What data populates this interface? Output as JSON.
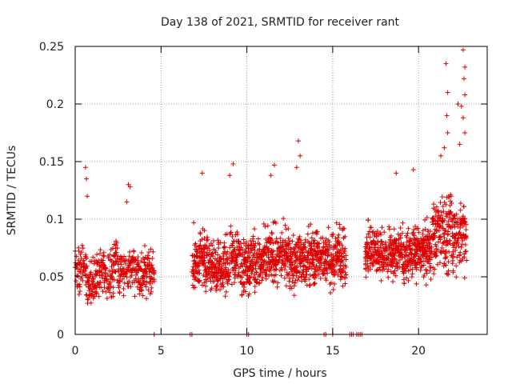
{
  "chart_data": {
    "type": "scatter",
    "title": "Day 138 of 2021, SRMTID for receiver rant",
    "xlabel": "GPS time / hours",
    "ylabel": "SRMTID / TECUs",
    "xlim": [
      0,
      24
    ],
    "ylim": [
      0,
      0.25
    ],
    "xticks": [
      0,
      5,
      10,
      15,
      20
    ],
    "xtick_labels": [
      "0",
      "5",
      "10",
      "15",
      "20"
    ],
    "yticks": [
      0,
      0.05,
      0.1,
      0.15,
      0.2,
      0.25
    ],
    "ytick_labels": [
      "0",
      "0.05",
      "0.1",
      "0.15",
      "0.2",
      "0.25"
    ],
    "grid": true,
    "marker": "+",
    "color": "#dd0000",
    "series": [
      {
        "name": "SRMTID",
        "segments": [
          {
            "x0": 0.0,
            "x1": 4.6,
            "y_mean": 0.055,
            "y_spread": 0.028,
            "step": 0.02
          },
          {
            "x0": 6.8,
            "x1": 15.8,
            "y_mean": 0.065,
            "y_spread": 0.035,
            "step": 0.015
          },
          {
            "x0": 16.9,
            "x1": 20.8,
            "y_mean": 0.072,
            "y_spread": 0.03,
            "step": 0.015
          },
          {
            "x0": 20.8,
            "x1": 22.8,
            "y_mean": 0.085,
            "y_spread": 0.045,
            "step": 0.015
          }
        ],
        "spikes": [
          {
            "x": 0.6,
            "y": 0.145
          },
          {
            "x": 0.65,
            "y": 0.135
          },
          {
            "x": 0.7,
            "y": 0.12
          },
          {
            "x": 3.1,
            "y": 0.13
          },
          {
            "x": 3.2,
            "y": 0.128
          },
          {
            "x": 3.0,
            "y": 0.115
          },
          {
            "x": 7.4,
            "y": 0.14
          },
          {
            "x": 9.2,
            "y": 0.148
          },
          {
            "x": 9.0,
            "y": 0.138
          },
          {
            "x": 11.6,
            "y": 0.147
          },
          {
            "x": 11.4,
            "y": 0.138
          },
          {
            "x": 13.0,
            "y": 0.168
          },
          {
            "x": 13.1,
            "y": 0.155
          },
          {
            "x": 12.9,
            "y": 0.145
          },
          {
            "x": 18.7,
            "y": 0.14
          },
          {
            "x": 19.7,
            "y": 0.143
          },
          {
            "x": 21.6,
            "y": 0.235
          },
          {
            "x": 21.7,
            "y": 0.21
          },
          {
            "x": 21.65,
            "y": 0.19
          },
          {
            "x": 21.7,
            "y": 0.175
          },
          {
            "x": 22.6,
            "y": 0.247
          },
          {
            "x": 22.7,
            "y": 0.232
          },
          {
            "x": 22.65,
            "y": 0.222
          },
          {
            "x": 22.7,
            "y": 0.208
          },
          {
            "x": 22.5,
            "y": 0.198
          },
          {
            "x": 22.3,
            "y": 0.2
          },
          {
            "x": 22.6,
            "y": 0.188
          },
          {
            "x": 22.7,
            "y": 0.175
          },
          {
            "x": 22.4,
            "y": 0.165
          },
          {
            "x": 21.5,
            "y": 0.162
          },
          {
            "x": 21.3,
            "y": 0.155
          }
        ],
        "zero_points": [
          4.6,
          6.7,
          6.8,
          10.0,
          10.1,
          14.5,
          14.6,
          15.0,
          16.0,
          16.1,
          16.2,
          16.4,
          16.5,
          16.6,
          16.7
        ]
      }
    ]
  }
}
